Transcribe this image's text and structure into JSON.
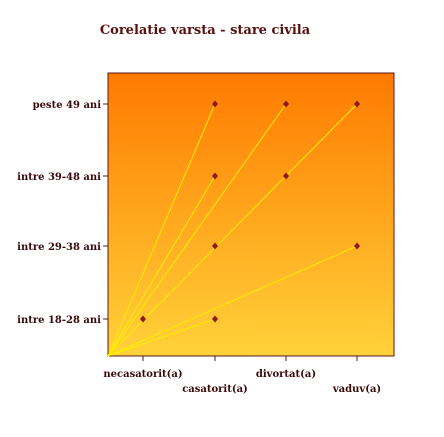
{
  "chart_data": {
    "type": "scatter",
    "title": "Corelatie varsta - stare civila",
    "xlabel": "",
    "ylabel": "",
    "categories_x": [
      "necasatorit(a)",
      "casatorit(a)",
      "divortat(a)",
      "vaduv(a)"
    ],
    "categories_y": [
      "intre 18-28 ani",
      "intre 29-38 ani",
      "intre 39-48 ani",
      "peste 49 ani"
    ],
    "points": [
      {
        "x": "necasatorit(a)",
        "y": "intre 18-28 ani"
      },
      {
        "x": "casatorit(a)",
        "y": "intre 18-28 ani"
      },
      {
        "x": "casatorit(a)",
        "y": "intre 29-38 ani"
      },
      {
        "x": "casatorit(a)",
        "y": "intre 39-48 ani"
      },
      {
        "x": "casatorit(a)",
        "y": "peste 49 ani"
      },
      {
        "x": "divortat(a)",
        "y": "intre 39-48 ani"
      },
      {
        "x": "divortat(a)",
        "y": "peste 49 ani"
      },
      {
        "x": "vaduv(a)",
        "y": "intre 29-38 ani"
      },
      {
        "x": "vaduv(a)",
        "y": "peste 49 ani"
      }
    ],
    "lines_from_origin_to": [
      {
        "x": "casatorit(a)",
        "y": "peste 49 ani"
      },
      {
        "x": "casatorit(a)",
        "y": "intre 39-48 ani"
      },
      {
        "x": "divortat(a)",
        "y": "peste 49 ani"
      },
      {
        "x": "vaduv(a)",
        "y": "peste 49 ani"
      },
      {
        "x": "vaduv(a)",
        "y": "intre 29-38 ani"
      },
      {
        "x": "casatorit(a)",
        "y": "intre 18-28 ani"
      }
    ],
    "colors": {
      "background_top": "#ff7a00",
      "background_bottom": "#ffd23a",
      "marker": "#8b1a1a",
      "line": "#ffee00",
      "title": "#5a0f0f",
      "text": "#3a0a0a"
    },
    "grid": false
  }
}
